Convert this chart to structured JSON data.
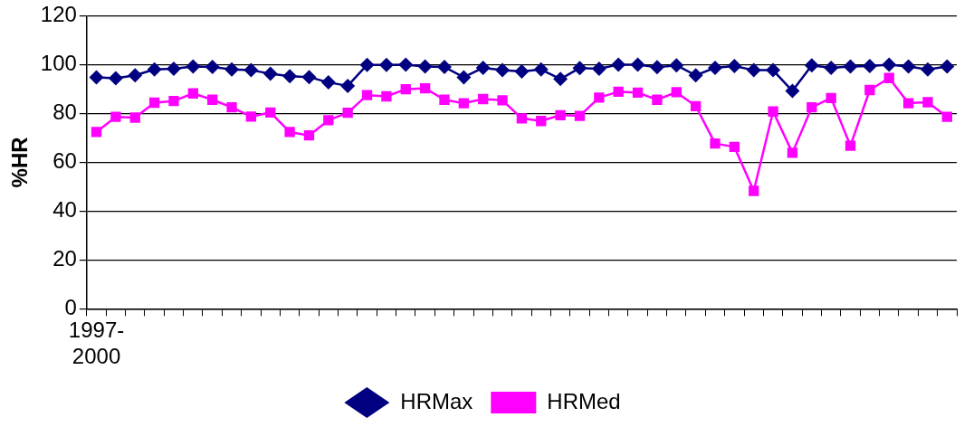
{
  "chart_data": {
    "type": "line",
    "ylabel": "%HR",
    "categories": [
      "1997-\n2000",
      null,
      null,
      null,
      null,
      null,
      null,
      null,
      null,
      null,
      null,
      null,
      null,
      null,
      null,
      null,
      null,
      null,
      null,
      null,
      null,
      null,
      null,
      null,
      null,
      null,
      null,
      null,
      null,
      null,
      null,
      null,
      null,
      null,
      null,
      null,
      null,
      null,
      null,
      null,
      null,
      null,
      null,
      null,
      null
    ],
    "series": [
      {
        "name": "HRMax",
        "color": "#000080",
        "marker": "diamond",
        "values": [
          94.8,
          94.4,
          95.6,
          98.0,
          98.3,
          99.2,
          99.0,
          98.0,
          97.7,
          96.3,
          95.2,
          94.9,
          92.7,
          91.3,
          99.9,
          99.9,
          100,
          99.2,
          99.0,
          94.8,
          98.7,
          97.7,
          97.2,
          98.0,
          94.1,
          98.6,
          98.3,
          100,
          100,
          98.9,
          99.7,
          95.6,
          98.7,
          99.4,
          97.7,
          97.7,
          89.2,
          99.7,
          98.7,
          99.2,
          99.4,
          100,
          99.2,
          98.0,
          99.2
        ]
      },
      {
        "name": "HRMed",
        "color": "#ff00ff",
        "marker": "square",
        "values": [
          72.4,
          78.6,
          78.3,
          84.4,
          85.1,
          88.2,
          85.6,
          82.5,
          78.7,
          80.4,
          72.4,
          71.0,
          77.2,
          80.3,
          87.5,
          87.0,
          89.9,
          90.3,
          85.6,
          84.2,
          85.9,
          85.4,
          78.0,
          76.9,
          79.3,
          79.0,
          86.5,
          88.9,
          88.5,
          85.6,
          88.7,
          83.0,
          67.7,
          66.3,
          48.3,
          80.8,
          63.9,
          82.5,
          86.3,
          66.8,
          89.6,
          94.5,
          84.2,
          84.6,
          78.6
        ]
      }
    ],
    "ylim": [
      0,
      120
    ],
    "yticks": [
      0,
      20,
      40,
      60,
      80,
      100,
      120
    ],
    "grid": "y",
    "legend": "bottom"
  }
}
